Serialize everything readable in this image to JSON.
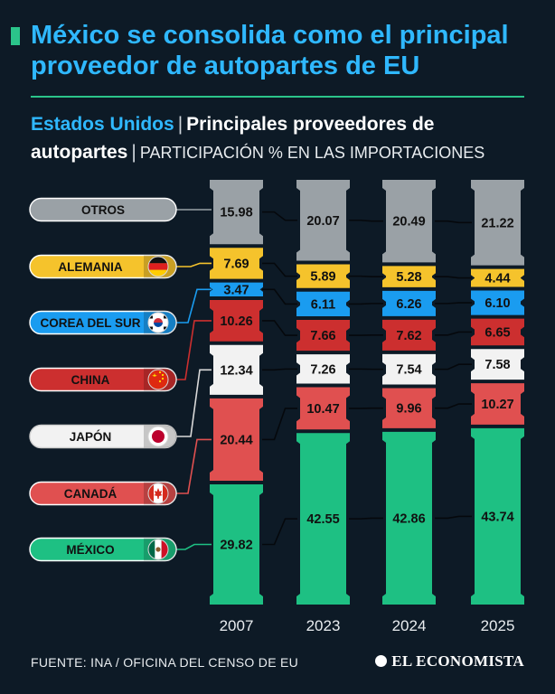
{
  "header": {
    "title": "México se consolida como el principal proveedor de autopartes de EU",
    "subtitle_country": "Estados Unidos",
    "subtitle_main": "Principales proveedores de autopartes",
    "subtitle_light": "PARTICIPACIÓN % EN LAS IMPORTACIONES"
  },
  "footer": {
    "source": "FUENTE: INA / OFICINA DEL CENSO DE EU",
    "brand": "EL ECONOMISTA"
  },
  "colors": {
    "background": "#0d1a26",
    "accent_green": "#2bc48a",
    "title_blue": "#2fb8ff"
  },
  "chart_data": {
    "type": "bar",
    "stacked": true,
    "normalized": true,
    "title": "México se consolida como el principal proveedor de autopartes de EU",
    "xlabel": "",
    "ylabel": "Participación % en las importaciones",
    "ylim": [
      0,
      100
    ],
    "categories": [
      "2007",
      "2023",
      "2024",
      "2025"
    ],
    "series": [
      {
        "name": "MÉXICO",
        "color": "#1ec083",
        "flag": "mexico",
        "values": [
          29.82,
          42.55,
          42.86,
          43.74
        ]
      },
      {
        "name": "CANADÁ",
        "color": "#e05050",
        "flag": "canada",
        "values": [
          20.44,
          10.47,
          9.96,
          10.27
        ]
      },
      {
        "name": "JAPÓN",
        "color": "#f2f2f2",
        "flag": "japan",
        "values": [
          12.34,
          7.26,
          7.54,
          7.58
        ]
      },
      {
        "name": "CHINA",
        "color": "#cc2f2f",
        "flag": "china",
        "values": [
          10.26,
          7.66,
          7.62,
          6.65
        ]
      },
      {
        "name": "COREA DEL SUR",
        "color": "#1a9cf0",
        "flag": "korea",
        "values": [
          3.47,
          6.11,
          6.26,
          6.1
        ]
      },
      {
        "name": "ALEMANIA",
        "color": "#f5c32c",
        "flag": "germany",
        "values": [
          7.69,
          5.89,
          5.28,
          4.44
        ]
      },
      {
        "name": "OTROS",
        "color": "#9aa1a6",
        "flag": "",
        "values": [
          15.98,
          20.07,
          20.49,
          21.22
        ]
      }
    ]
  }
}
